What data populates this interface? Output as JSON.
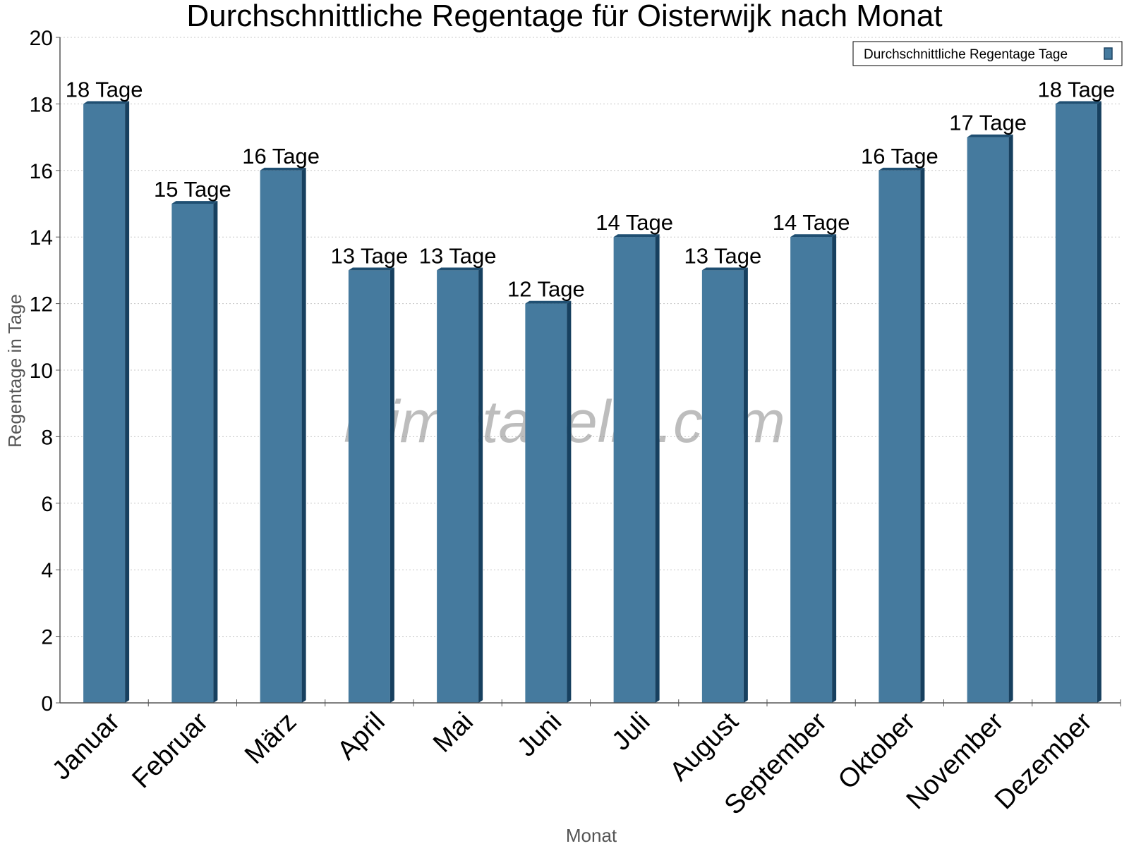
{
  "watermark": "klimatabelle.com",
  "chart_data": {
    "type": "bar",
    "title": "Durchschnittliche Regentage für Oisterwijk nach Monat",
    "xlabel": "Monat",
    "ylabel": "Regentage in Tage",
    "ylim": [
      0,
      20
    ],
    "yticks": [
      "0",
      "2",
      "4",
      "6",
      "8",
      "10",
      "12",
      "14",
      "16",
      "18",
      "20"
    ],
    "grid": true,
    "legend_position": "top-right",
    "categories": [
      "Januar",
      "Februar",
      "März",
      "April",
      "Mai",
      "Juni",
      "Juli",
      "August",
      "September",
      "Oktober",
      "November",
      "Dezember"
    ],
    "series": [
      {
        "name": "Durchschnittliche Regentage Tage",
        "color": "#457a9e",
        "values": [
          18,
          15,
          16,
          13,
          13,
          12,
          14,
          13,
          14,
          16,
          17,
          18
        ],
        "labels": [
          "18 Tage",
          "15 Tage",
          "16 Tage",
          "13 Tage",
          "13 Tage",
          "12 Tage",
          "14 Tage",
          "13 Tage",
          "14 Tage",
          "16 Tage",
          "17 Tage",
          "18 Tage"
        ]
      }
    ]
  }
}
